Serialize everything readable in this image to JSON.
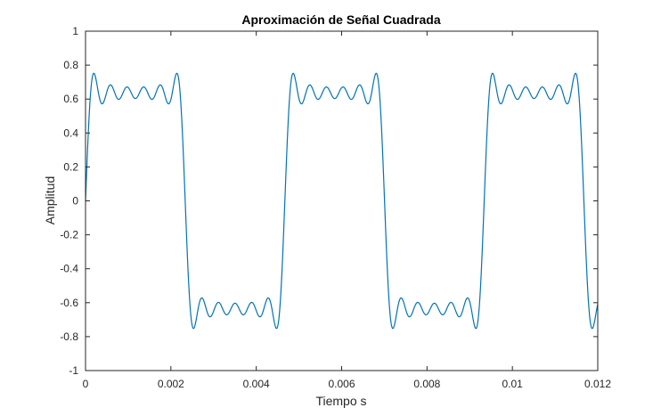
{
  "chart_data": {
    "type": "line",
    "title": "Aproximación de Señal Cuadrada",
    "xlabel": "Tiempo s",
    "ylabel": "Amplitud",
    "xlim": [
      0,
      0.012
    ],
    "ylim": [
      -1,
      1
    ],
    "xticks": [
      0,
      0.002,
      0.004,
      0.006,
      0.008,
      0.01,
      0.012
    ],
    "xtick_labels": [
      "0",
      "0.002",
      "0.004",
      "0.006",
      "0.008",
      "0.01",
      "0.012"
    ],
    "yticks": [
      -1,
      -0.8,
      -0.6,
      -0.4,
      -0.2,
      0,
      0.2,
      0.4,
      0.6,
      0.8,
      1
    ],
    "ytick_labels": [
      "-1",
      "-0.8",
      "-0.6",
      "-0.4",
      "-0.2",
      "0",
      "0.2",
      "0.4",
      "0.6",
      "0.8",
      "1"
    ],
    "grid": false,
    "color": "#0072BD",
    "series": [
      {
        "period": 0.00467,
        "harmonics": [
          1,
          3,
          5,
          7,
          9,
          11
        ],
        "amplitude_scale": 0.6366
      }
    ]
  }
}
